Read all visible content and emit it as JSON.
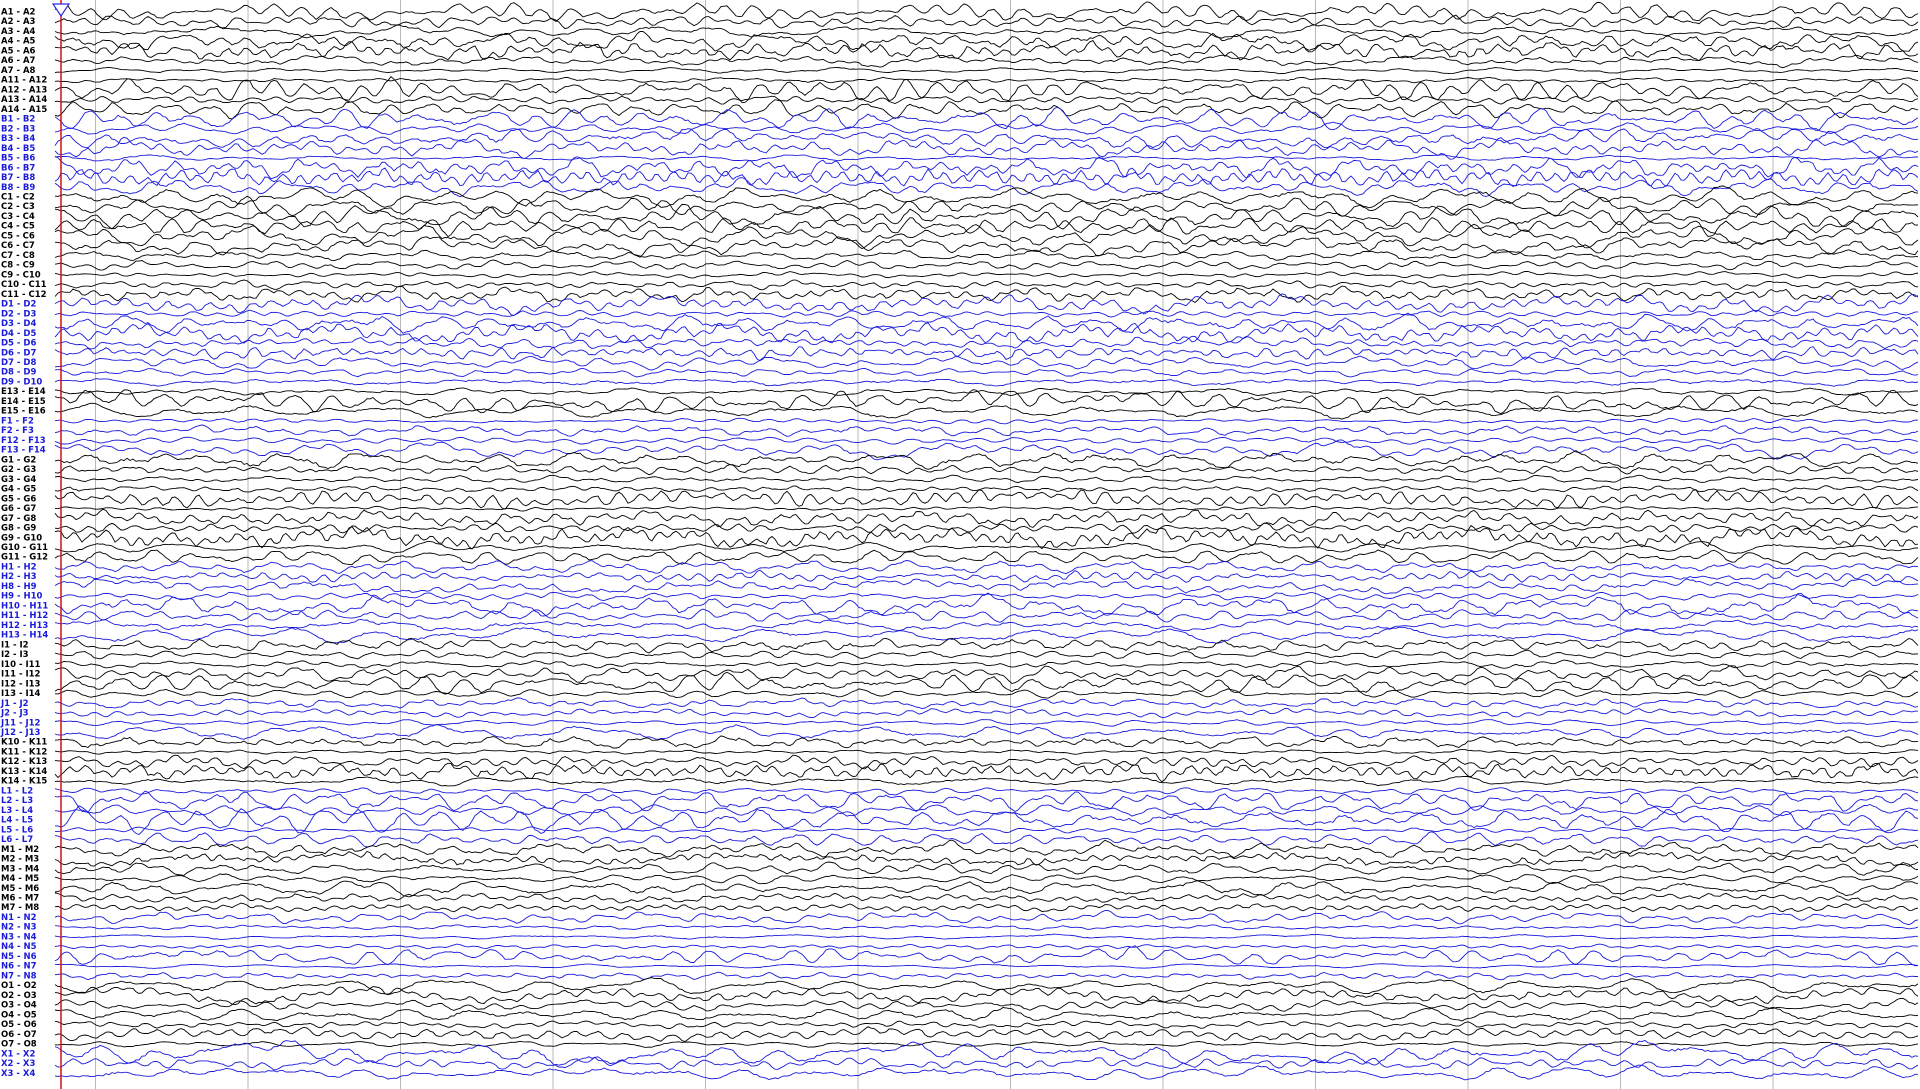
{
  "groups": [
    {
      "color": "#000000",
      "labels": [
        "A1 - A2",
        "A2 - A3",
        "A3 - A4",
        "A4 - A5",
        "A5 - A6",
        "A6 - A7",
        "A7 - A8",
        "A11 - A12",
        "A12 - A13",
        "A13 - A14",
        "A14 - A15"
      ]
    },
    {
      "color": "#1a1adc",
      "labels": [
        "B1 - B2",
        "B2 - B3",
        "B3 - B4",
        "B4 - B5",
        "B5 - B6",
        "B6 - B7",
        "B7 - B8",
        "B8 - B9"
      ]
    },
    {
      "color": "#000000",
      "labels": [
        "C1 - C2",
        "C2 - C3",
        "C3 - C4",
        "C4 - C5",
        "C5 - C6",
        "C6 - C7",
        "C7 - C8",
        "C8 - C9",
        "C9 - C10",
        "C10 - C11",
        "C11 - C12"
      ]
    },
    {
      "color": "#1a1adc",
      "labels": [
        "D1 - D2",
        "D2 - D3",
        "D3 - D4",
        "D4 - D5",
        "D5 - D6",
        "D6 - D7",
        "D7 - D8",
        "D8 - D9",
        "D9 - D10"
      ]
    },
    {
      "color": "#000000",
      "labels": [
        "E13 - E14",
        "E14 - E15",
        "E15 - E16"
      ]
    },
    {
      "color": "#1a1adc",
      "labels": [
        "F1 - F2",
        "F2 - F3",
        "F12 - F13",
        "F13 - F14"
      ]
    },
    {
      "color": "#000000",
      "labels": [
        "G1 - G2",
        "G2 - G3",
        "G3 - G4",
        "G4 - G5",
        "G5 - G6",
        "G6 - G7",
        "G7 - G8",
        "G8 - G9",
        "G9 - G10",
        "G10 - G11",
        "G11 - G12"
      ]
    },
    {
      "color": "#1a1adc",
      "labels": [
        "H1 - H2",
        "H2 - H3",
        "H8 - H9",
        "H9 - H10",
        "H10 - H11",
        "H11 - H12",
        "H12 - H13",
        "H13 - H14"
      ]
    },
    {
      "color": "#000000",
      "labels": [
        "I1 - I2",
        "I2 - I3",
        "I10 - I11",
        "I11 - I12",
        "I12 - I13",
        "I13 - I14"
      ]
    },
    {
      "color": "#1a1adc",
      "labels": [
        "J1 - J2",
        "J2 - J3",
        "J11 - J12",
        "J12 - J13"
      ]
    },
    {
      "color": "#000000",
      "labels": [
        "K10 - K11",
        "K11 - K12",
        "K12 - K13",
        "K13 - K14",
        "K14 - K15"
      ]
    },
    {
      "color": "#1a1adc",
      "labels": [
        "L1 - L2",
        "L2 - L3",
        "L3 - L4",
        "L4 - L5",
        "L5 - L6",
        "L6 - L7"
      ]
    },
    {
      "color": "#000000",
      "labels": [
        "M1 - M2",
        "M2 - M3",
        "M3 - M4",
        "M4 - M5",
        "M5 - M6",
        "M6 - M7",
        "M7 - M8"
      ]
    },
    {
      "color": "#1a1adc",
      "labels": [
        "N1 - N2",
        "N2 - N3",
        "N3 - N4",
        "N4 - N5",
        "N5 - N6",
        "N6 - N7",
        "N7 - N8"
      ]
    },
    {
      "color": "#000000",
      "labels": [
        "O1 - O2",
        "O2 - O3",
        "O3 - O4",
        "O4 - O5",
        "O5 - O6",
        "O6 - O7",
        "O7 - O8"
      ]
    },
    {
      "color": "#1a1adc",
      "labels": [
        "X1 - X2",
        "X2 - X3",
        "X3 - X4"
      ]
    }
  ]
}
